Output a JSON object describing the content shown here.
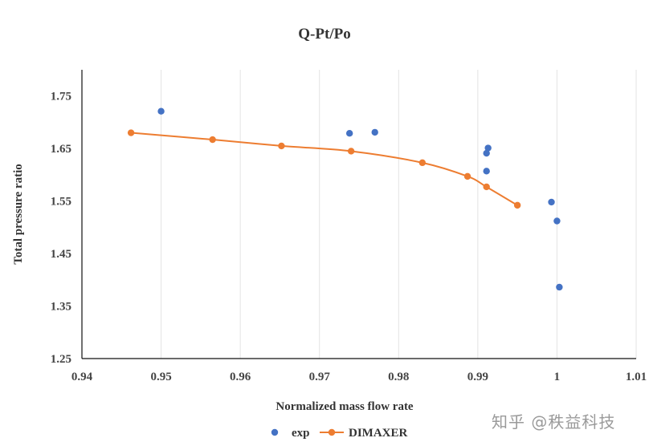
{
  "chart_data": {
    "type": "scatter",
    "title": "Q-Pt/Po",
    "xlabel": "Normalized mass flow rate",
    "ylabel": "Total pressure ratio",
    "xlim": [
      0.94,
      1.01
    ],
    "ylim": [
      1.25,
      1.8
    ],
    "x_ticks": [
      0.94,
      0.95,
      0.96,
      0.97,
      0.98,
      0.99,
      1.0,
      1.01
    ],
    "x_tick_labels": [
      "0.94",
      "0.95",
      "0.96",
      "0.97",
      "0.98",
      "0.99",
      "1",
      "1.01"
    ],
    "y_ticks": [
      1.25,
      1.35,
      1.45,
      1.55,
      1.65,
      1.75
    ],
    "y_tick_labels": [
      "1.25",
      "1.35",
      "1.45",
      "1.55",
      "1.65",
      "1.75"
    ],
    "grid": "vertical",
    "legend_position": "bottom",
    "series": [
      {
        "name": "exp",
        "style": "markers",
        "color": "#4472C4",
        "x": [
          0.95,
          0.9738,
          0.977,
          0.9911,
          0.9913,
          0.9911,
          0.9993,
          1.0,
          1.0003
        ],
        "y": [
          1.721,
          1.679,
          1.681,
          1.641,
          1.651,
          1.607,
          1.548,
          1.512,
          1.386
        ]
      },
      {
        "name": "DIMAXER",
        "style": "line-markers",
        "color": "#ED7D31",
        "x": [
          0.9462,
          0.9565,
          0.9652,
          0.974,
          0.983,
          0.9887,
          0.9911,
          0.995
        ],
        "y": [
          1.68,
          1.667,
          1.655,
          1.645,
          1.623,
          1.597,
          1.577,
          1.542
        ]
      }
    ]
  },
  "watermark": "知乎 @秩益科技"
}
